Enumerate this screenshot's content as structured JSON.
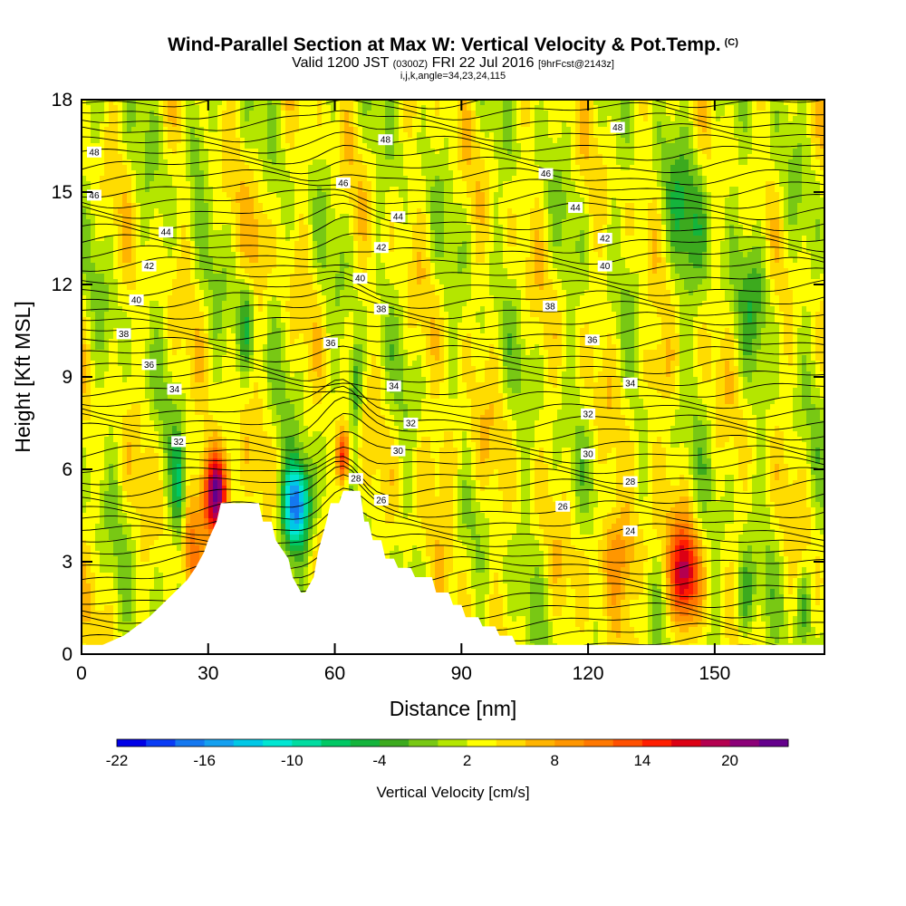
{
  "header": {
    "title": "Wind-Parallel Section at Max W: Vertical Velocity & Pot.Temp.",
    "title_mark": "(C)",
    "valid_prefix": "Valid 1200 JST",
    "valid_utc": "(0300Z)",
    "valid_date": "FRI 22 Jul 2016",
    "forecast": "[9hrFcst@2143z]",
    "indices": "i,j,k,angle=34,23,24,115"
  },
  "chart_data": {
    "type": "heatmap",
    "title": "Wind-Parallel Section at Max W: Vertical Velocity & Pot.Temp.",
    "xlabel": "Distance [nm]",
    "ylabel": "Height [Kft MSL]",
    "xlim": [
      0,
      176
    ],
    "ylim": [
      0,
      18
    ],
    "x_ticks": [
      "0",
      "30",
      "60",
      "90",
      "120",
      "150"
    ],
    "y_ticks": [
      "0",
      "3",
      "6",
      "9",
      "12",
      "15",
      "18"
    ],
    "colorbar": {
      "title": "Vertical Velocity [cm/s]",
      "range": [
        -22,
        22
      ],
      "tick_labels": [
        "-22",
        "-16",
        "-10",
        "-4",
        "2",
        "8",
        "14",
        "20"
      ],
      "colors": [
        "#0000e6",
        "#0a3cf5",
        "#1478f0",
        "#14a0f0",
        "#00c8e6",
        "#00e6d2",
        "#00dca0",
        "#00c864",
        "#14b43c",
        "#3caa1e",
        "#78c814",
        "#b4e600",
        "#ffff00",
        "#ffdc00",
        "#ffb400",
        "#ff9600",
        "#ff7800",
        "#ff5000",
        "#ff1e00",
        "#dc0014",
        "#b40050",
        "#8c0078",
        "#64008c"
      ]
    },
    "terrain": {
      "x_nm": [
        0,
        10,
        13,
        16,
        19,
        22,
        25,
        27,
        29,
        30,
        32,
        33,
        36,
        37,
        42,
        43,
        45,
        46,
        49,
        50,
        52,
        53,
        55,
        56,
        58,
        59,
        61,
        62,
        64,
        65,
        66,
        67,
        68,
        69,
        71,
        72,
        74,
        75,
        78,
        79,
        83,
        84,
        87,
        88,
        90,
        91,
        94,
        95,
        98,
        99,
        102,
        103,
        106,
        107,
        176
      ],
      "height_kft": [
        0,
        0.6,
        0.9,
        1.2,
        1.6,
        2.0,
        2.4,
        2.8,
        3.3,
        3.7,
        4.3,
        4.9,
        4.9,
        4.9,
        4.9,
        4.3,
        4.3,
        3.7,
        3.1,
        2.5,
        2.0,
        2.0,
        2.5,
        3.3,
        4.3,
        4.9,
        4.9,
        5.3,
        5.3,
        5.3,
        5.3,
        4.3,
        4.3,
        3.7,
        3.7,
        3.1,
        3.1,
        2.8,
        2.8,
        2.5,
        2.5,
        2.0,
        2.0,
        1.6,
        1.6,
        1.2,
        1.2,
        0.9,
        0.9,
        0.6,
        0.6,
        0.3,
        0.3,
        0,
        0
      ]
    },
    "isentrope_labels": [
      {
        "x_nm": 3,
        "height_kft": 16.3,
        "text": "48"
      },
      {
        "x_nm": 72,
        "height_kft": 16.7,
        "text": "48"
      },
      {
        "x_nm": 127,
        "height_kft": 17.1,
        "text": "48"
      },
      {
        "x_nm": 3,
        "height_kft": 14.9,
        "text": "46"
      },
      {
        "x_nm": 62,
        "height_kft": 15.3,
        "text": "46"
      },
      {
        "x_nm": 110,
        "height_kft": 15.6,
        "text": "46"
      },
      {
        "x_nm": 20,
        "height_kft": 13.7,
        "text": "44"
      },
      {
        "x_nm": 75,
        "height_kft": 14.2,
        "text": "44"
      },
      {
        "x_nm": 117,
        "height_kft": 14.5,
        "text": "44"
      },
      {
        "x_nm": 16,
        "height_kft": 12.6,
        "text": "42"
      },
      {
        "x_nm": 71,
        "height_kft": 13.2,
        "text": "42"
      },
      {
        "x_nm": 124,
        "height_kft": 13.5,
        "text": "42"
      },
      {
        "x_nm": 13,
        "height_kft": 11.5,
        "text": "40"
      },
      {
        "x_nm": 66,
        "height_kft": 12.2,
        "text": "40"
      },
      {
        "x_nm": 124,
        "height_kft": 12.6,
        "text": "40"
      },
      {
        "x_nm": 10,
        "height_kft": 10.4,
        "text": "38"
      },
      {
        "x_nm": 71,
        "height_kft": 11.2,
        "text": "38"
      },
      {
        "x_nm": 111,
        "height_kft": 11.3,
        "text": "38"
      },
      {
        "x_nm": 16,
        "height_kft": 9.4,
        "text": "36"
      },
      {
        "x_nm": 59,
        "height_kft": 10.1,
        "text": "36"
      },
      {
        "x_nm": 121,
        "height_kft": 10.2,
        "text": "36"
      },
      {
        "x_nm": 22,
        "height_kft": 8.6,
        "text": "34"
      },
      {
        "x_nm": 74,
        "height_kft": 8.7,
        "text": "34"
      },
      {
        "x_nm": 130,
        "height_kft": 8.8,
        "text": "34"
      },
      {
        "x_nm": 23,
        "height_kft": 6.9,
        "text": "32"
      },
      {
        "x_nm": 78,
        "height_kft": 7.5,
        "text": "32"
      },
      {
        "x_nm": 120,
        "height_kft": 7.8,
        "text": "32"
      },
      {
        "x_nm": 75,
        "height_kft": 6.6,
        "text": "30"
      },
      {
        "x_nm": 120,
        "height_kft": 6.5,
        "text": "30"
      },
      {
        "x_nm": 65,
        "height_kft": 5.7,
        "text": "28"
      },
      {
        "x_nm": 130,
        "height_kft": 5.6,
        "text": "28"
      },
      {
        "x_nm": 71,
        "height_kft": 5.0,
        "text": "26"
      },
      {
        "x_nm": 114,
        "height_kft": 4.8,
        "text": "26"
      },
      {
        "x_nm": 130,
        "height_kft": 4.0,
        "text": "24"
      }
    ],
    "vertical_velocity_features": [
      {
        "x_nm": 32,
        "height_kft": 5.2,
        "value_cm_s": 20
      },
      {
        "x_nm": 62,
        "height_kft": 6.3,
        "value_cm_s": 14
      },
      {
        "x_nm": 51,
        "height_kft": 5.0,
        "value_cm_s": -16
      },
      {
        "x_nm": 143,
        "height_kft": 2.7,
        "value_cm_s": 14
      },
      {
        "x_nm": 23,
        "height_kft": 5.6,
        "value_cm_s": -6
      },
      {
        "x_nm": 65,
        "height_kft": 8.5,
        "value_cm_s": -7
      }
    ]
  }
}
